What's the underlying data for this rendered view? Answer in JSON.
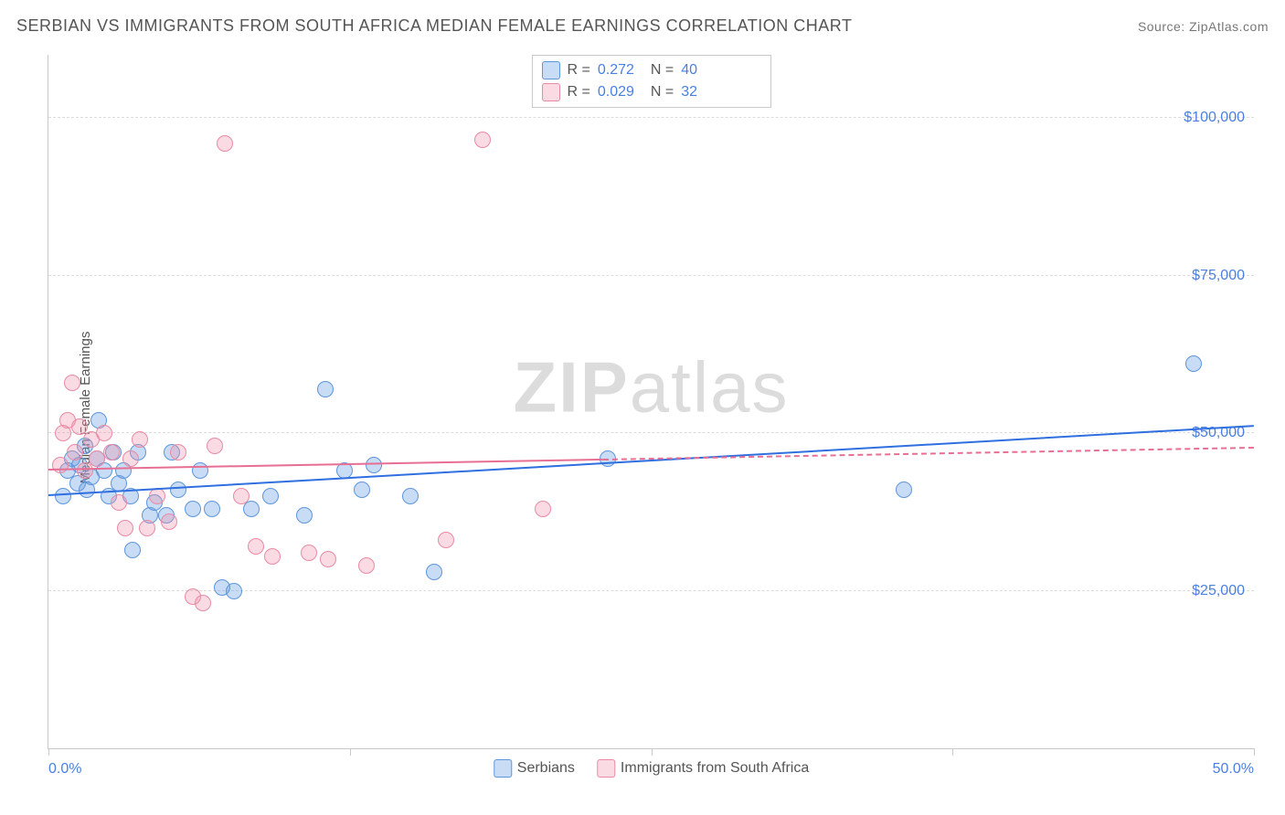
{
  "title": "SERBIAN VS IMMIGRANTS FROM SOUTH AFRICA MEDIAN FEMALE EARNINGS CORRELATION CHART",
  "source_label": "Source: ",
  "source_name": "ZipAtlas.com",
  "yaxis_label": "Median Female Earnings",
  "watermark_a": "ZIP",
  "watermark_b": "atlas",
  "chart": {
    "type": "scatter",
    "background_color": "#ffffff",
    "grid_color": "#dcdcdc",
    "axis_color": "#c9c9c9",
    "text_color": "#555555",
    "value_color": "#4a7fe0",
    "xlim": [
      0,
      50
    ],
    "ylim": [
      0,
      110000
    ],
    "x_tick_positions": [
      0,
      12.5,
      25,
      37.5,
      50
    ],
    "x_labels": {
      "min": "0.0%",
      "max": "50.0%"
    },
    "y_gridlines": [
      25000,
      50000,
      75000,
      100000
    ],
    "y_labels": [
      "$25,000",
      "$50,000",
      "$75,000",
      "$100,000"
    ],
    "series": [
      {
        "key": "a",
        "name": "Serbians",
        "color_fill": "rgba(99,155,227,0.35)",
        "color_stroke": "#5e96db",
        "trend_color": "#2f6fe0",
        "R": "0.272",
        "N": "40",
        "trend": {
          "x1": 0,
          "y1": 40000,
          "x2": 50,
          "y2": 51000,
          "dash_after_x": null
        },
        "points": [
          {
            "x": 0.8,
            "y": 44000
          },
          {
            "x": 1.0,
            "y": 46000
          },
          {
            "x": 1.2,
            "y": 42000
          },
          {
            "x": 1.3,
            "y": 45000
          },
          {
            "x": 1.5,
            "y": 48000
          },
          {
            "x": 1.6,
            "y": 41000
          },
          {
            "x": 1.8,
            "y": 43000
          },
          {
            "x": 2.0,
            "y": 46000
          },
          {
            "x": 2.1,
            "y": 52000
          },
          {
            "x": 2.3,
            "y": 44000
          },
          {
            "x": 2.5,
            "y": 40000
          },
          {
            "x": 2.7,
            "y": 47000
          },
          {
            "x": 2.9,
            "y": 42000
          },
          {
            "x": 3.1,
            "y": 44000
          },
          {
            "x": 3.4,
            "y": 40000
          },
          {
            "x": 3.5,
            "y": 31500
          },
          {
            "x": 3.7,
            "y": 47000
          },
          {
            "x": 4.2,
            "y": 37000
          },
          {
            "x": 4.4,
            "y": 39000
          },
          {
            "x": 4.9,
            "y": 37000
          },
          {
            "x": 5.1,
            "y": 47000
          },
          {
            "x": 5.4,
            "y": 41000
          },
          {
            "x": 6.0,
            "y": 38000
          },
          {
            "x": 6.3,
            "y": 44000
          },
          {
            "x": 6.8,
            "y": 38000
          },
          {
            "x": 7.2,
            "y": 25500
          },
          {
            "x": 7.7,
            "y": 25000
          },
          {
            "x": 8.4,
            "y": 38000
          },
          {
            "x": 9.2,
            "y": 40000
          },
          {
            "x": 10.6,
            "y": 37000
          },
          {
            "x": 11.5,
            "y": 57000
          },
          {
            "x": 12.3,
            "y": 44000
          },
          {
            "x": 13.0,
            "y": 41000
          },
          {
            "x": 13.5,
            "y": 45000
          },
          {
            "x": 15.0,
            "y": 40000
          },
          {
            "x": 16.0,
            "y": 28000
          },
          {
            "x": 23.2,
            "y": 46000
          },
          {
            "x": 35.5,
            "y": 41000
          },
          {
            "x": 47.5,
            "y": 61000
          },
          {
            "x": 0.6,
            "y": 40000
          }
        ]
      },
      {
        "key": "b",
        "name": "Immigants from South Africa",
        "display_name": "Immigrants from South Africa",
        "color_fill": "rgba(238,144,167,0.32)",
        "color_stroke": "#e98aa4",
        "trend_color": "#e76f93",
        "R": "0.029",
        "N": "32",
        "trend": {
          "x1": 0,
          "y1": 44000,
          "x2": 50,
          "y2": 47500,
          "dash_after_x": 23
        },
        "points": [
          {
            "x": 0.5,
            "y": 45000
          },
          {
            "x": 0.6,
            "y": 50000
          },
          {
            "x": 0.8,
            "y": 52000
          },
          {
            "x": 1.0,
            "y": 58000
          },
          {
            "x": 1.1,
            "y": 47000
          },
          {
            "x": 1.3,
            "y": 51000
          },
          {
            "x": 1.5,
            "y": 44000
          },
          {
            "x": 1.8,
            "y": 49000
          },
          {
            "x": 2.0,
            "y": 46000
          },
          {
            "x": 2.3,
            "y": 50000
          },
          {
            "x": 2.6,
            "y": 47000
          },
          {
            "x": 2.9,
            "y": 39000
          },
          {
            "x": 3.2,
            "y": 35000
          },
          {
            "x": 3.4,
            "y": 46000
          },
          {
            "x": 3.8,
            "y": 49000
          },
          {
            "x": 4.1,
            "y": 35000
          },
          {
            "x": 4.5,
            "y": 40000
          },
          {
            "x": 5.0,
            "y": 36000
          },
          {
            "x": 5.4,
            "y": 47000
          },
          {
            "x": 6.0,
            "y": 24000
          },
          {
            "x": 6.4,
            "y": 23000
          },
          {
            "x": 6.9,
            "y": 48000
          },
          {
            "x": 7.3,
            "y": 96000
          },
          {
            "x": 8.0,
            "y": 40000
          },
          {
            "x": 8.6,
            "y": 32000
          },
          {
            "x": 9.3,
            "y": 30500
          },
          {
            "x": 10.8,
            "y": 31000
          },
          {
            "x": 11.6,
            "y": 30000
          },
          {
            "x": 13.2,
            "y": 29000
          },
          {
            "x": 16.5,
            "y": 33000
          },
          {
            "x": 18.0,
            "y": 96500
          },
          {
            "x": 20.5,
            "y": 38000
          }
        ]
      }
    ],
    "legend_top": {
      "r_label": "R  =",
      "n_label": "N  ="
    }
  }
}
